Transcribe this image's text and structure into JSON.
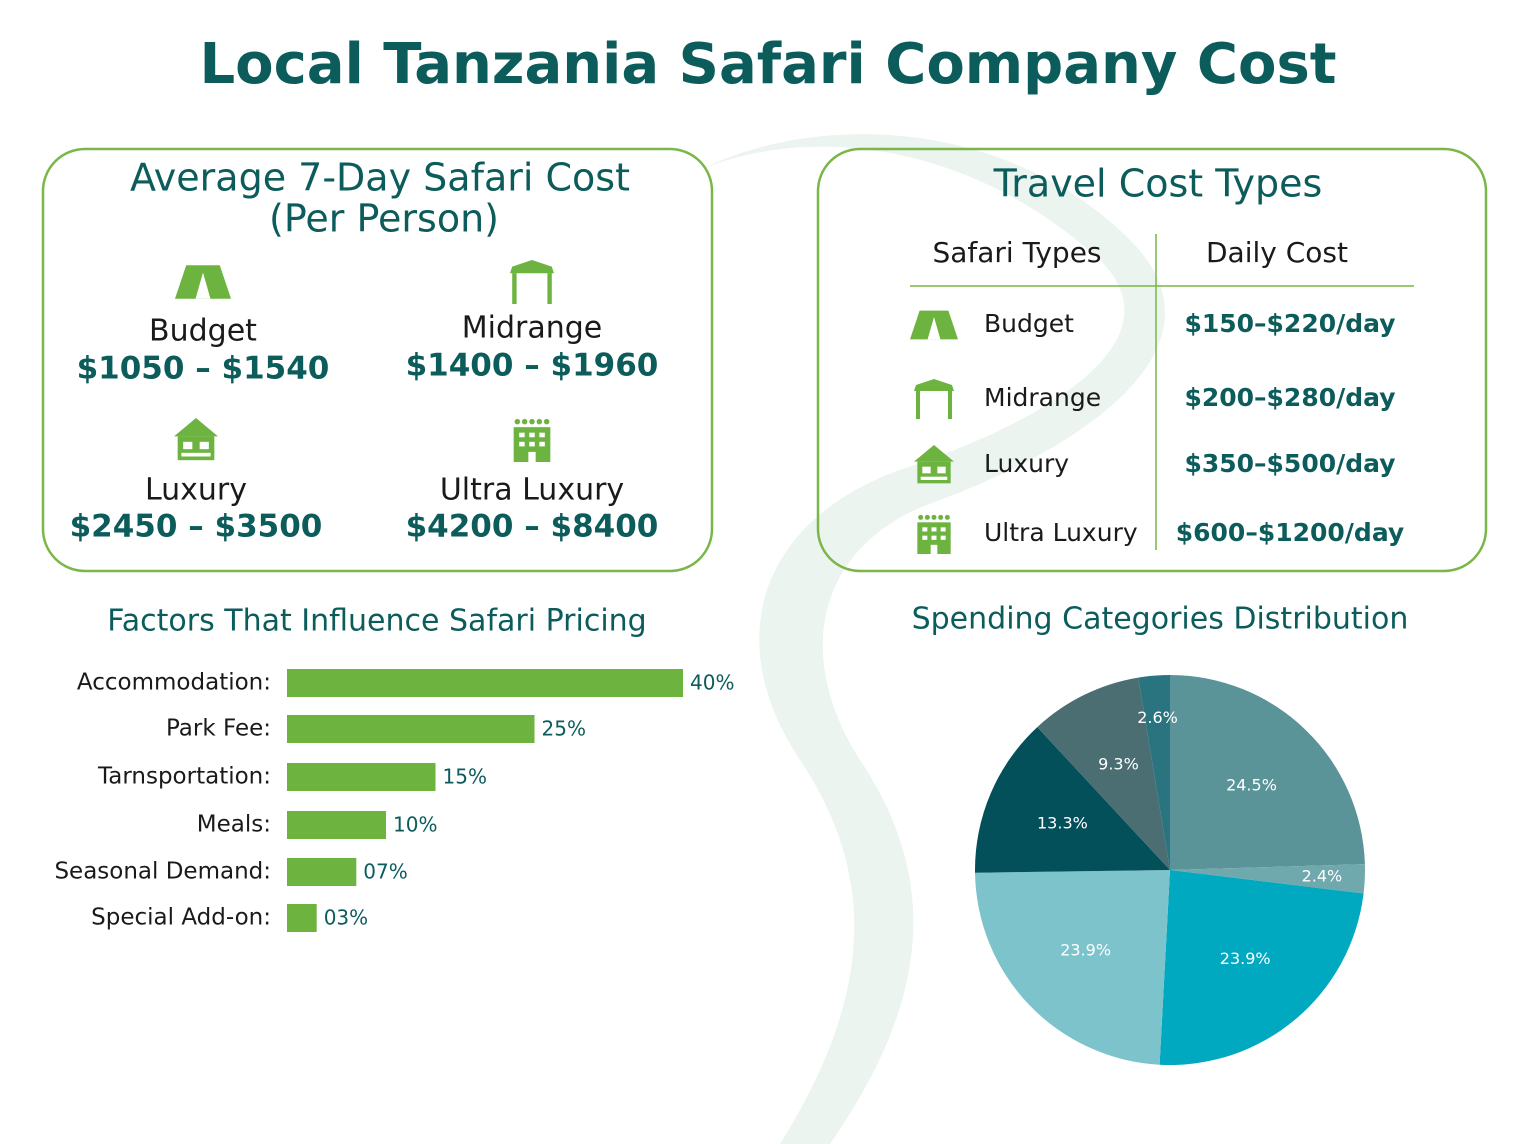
{
  "title": "Local Tanzania Safari Company Cost",
  "average_cost": {
    "title": "Average 7-Day Safari Cost",
    "subtitle": "(Per Person)",
    "items": [
      {
        "label": "Budget",
        "range": "$1050 – $1540"
      },
      {
        "label": "Midrange",
        "range": "$1400 – $1960"
      },
      {
        "label": "Luxury",
        "range": "$2450 – $3500"
      },
      {
        "label": "Ultra Luxury",
        "range": "$4200 – $8400"
      }
    ]
  },
  "travel_cost_types": {
    "title": "Travel Cost Types",
    "columns": [
      "Safari Types",
      "Daily Cost"
    ],
    "rows": [
      [
        "Budget",
        "$150–$220/day"
      ],
      [
        "Midrange",
        "$200–$280/day"
      ],
      [
        "Luxury",
        "$350–$500/day"
      ],
      [
        "Ultra Luxury",
        "$600–$1200/day"
      ]
    ]
  },
  "chart_data": [
    {
      "type": "bar",
      "title": "Factors That Influence Safari Pricing",
      "categories": [
        "Accommodation:",
        "Park Fee:",
        "Tarnsportation:",
        "Meals:",
        "Seasonal Demand:",
        "Special Add-on:"
      ],
      "values": [
        40,
        25,
        15,
        10,
        7,
        3
      ],
      "value_labels": [
        "40%",
        "25%",
        "15%",
        "10%",
        "07%",
        "03%"
      ],
      "color": "#6db33f"
    },
    {
      "type": "pie",
      "title": "Spending Categories Distribution",
      "values": [
        24.5,
        2.4,
        23.9,
        23.9,
        13.3,
        9.3,
        2.6
      ],
      "value_labels": [
        "24.5%",
        "2.4%",
        "23.9%",
        "23.9%",
        "13.3%",
        "9.3%",
        "2.6%"
      ],
      "colors": [
        "#5a9499",
        "#6fa9ad",
        "#00a9c0",
        "#7cc3cb",
        "#034f5a",
        "#4a6e72",
        "#2a7480"
      ]
    }
  ]
}
